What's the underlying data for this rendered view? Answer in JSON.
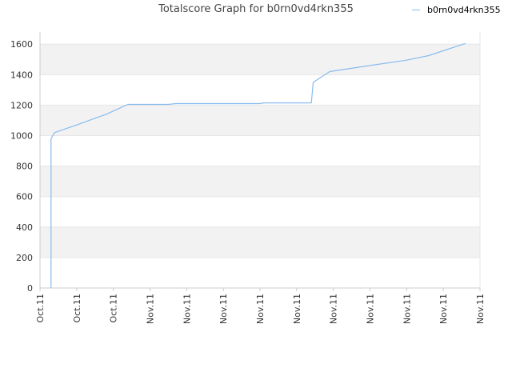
{
  "chart_data": {
    "type": "line",
    "title": "Totalscore Graph for b0rn0vd4rkn355",
    "xlabel": "",
    "ylabel": "",
    "ylim": [
      0,
      1680
    ],
    "yticks": [
      0,
      200,
      400,
      600,
      800,
      1000,
      1200,
      1400,
      1600
    ],
    "xticks": [
      "Oct.11",
      "Oct.11",
      "Oct.11",
      "Nov.11",
      "Nov.11",
      "Nov.11",
      "Nov.11",
      "Nov.11",
      "Nov.11",
      "Nov.11",
      "Nov.11",
      "Nov.11",
      "Nov.11"
    ],
    "grid": "horizontal alternating bands",
    "legend": "top-right",
    "series": [
      {
        "name": "b0rn0vd4rkn355",
        "color": "#88bbee",
        "x": [
          0.3,
          0.3,
          0.35,
          0.4,
          1.0,
          1.8,
          2.4,
          3.5,
          3.7,
          5.0,
          6.0,
          6.1,
          7.4,
          7.45,
          7.9,
          9.0,
          10.0,
          10.6,
          11.6
        ],
        "values": [
          0,
          980,
          1000,
          1020,
          1070,
          1140,
          1205,
          1205,
          1210,
          1210,
          1210,
          1215,
          1215,
          1350,
          1420,
          1460,
          1495,
          1525,
          1605
        ]
      }
    ]
  },
  "colors": {
    "band": "#f2f2f2",
    "gridline": "#e6e6e6",
    "axis": "#cccccc"
  }
}
